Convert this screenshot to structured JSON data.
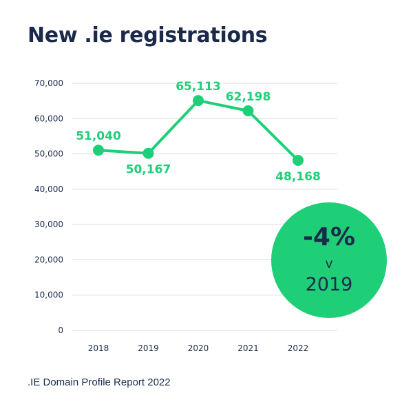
{
  "title": "New .ie registrations",
  "footer": ".IE Domain Profile Report 2022",
  "colors": {
    "accent": "#1fcf78",
    "text": "#1b2a4a",
    "grid": "#d9dde3"
  },
  "badge": {
    "value": "-4%",
    "vs": "v",
    "year": "2019"
  },
  "chart_data": {
    "type": "line",
    "title": "New .ie registrations",
    "xlabel": "",
    "ylabel": "",
    "categories": [
      "2018",
      "2019",
      "2020",
      "2021",
      "2022"
    ],
    "values": [
      51040,
      50167,
      65113,
      62198,
      48168
    ],
    "data_labels": [
      "51,040",
      "50,167",
      "65,113",
      "62,198",
      "48,168"
    ],
    "ylim": [
      0,
      70000
    ],
    "yticks": [
      0,
      10000,
      20000,
      30000,
      40000,
      50000,
      60000,
      70000
    ],
    "ytick_labels": [
      "0",
      "10,000",
      "20,000",
      "30,000",
      "40,000",
      "50,000",
      "60,000",
      "70,000"
    ],
    "grid": true,
    "legend": "none"
  }
}
